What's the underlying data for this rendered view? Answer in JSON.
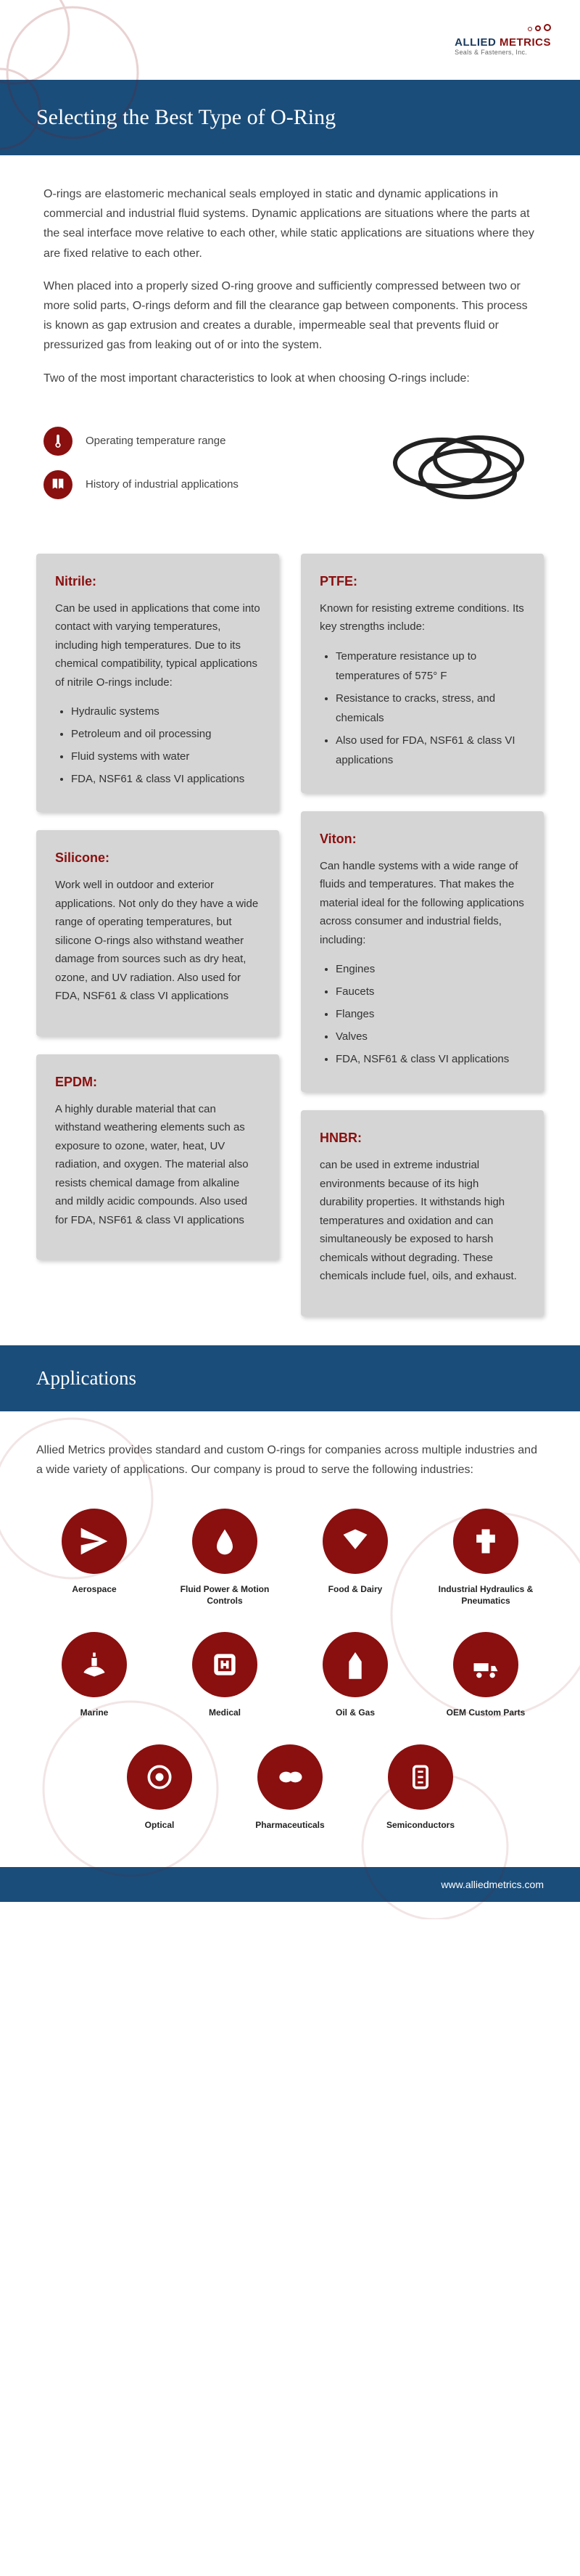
{
  "brand": {
    "name": "ALLIED",
    "accent": "METRICS",
    "sub": "Seals & Fasteners, Inc."
  },
  "title": "Selecting the Best Type of O-Ring",
  "intro": [
    "O-rings are elastomeric mechanical seals employed in static and dynamic applications in commercial and industrial fluid systems. Dynamic applications are situations where the parts at the seal interface move relative to each other, while static applications are situations where they are fixed relative to each other.",
    "When placed into a properly sized O-ring groove and sufficiently compressed between two or more solid parts, O-rings deform and fill the clearance gap between components. This process is known as gap extrusion and creates a durable, impermeable seal that prevents fluid or pressurized gas from leaking out of or into the system.",
    "Two of the most important characteristics to look at when choosing O-rings include:"
  ],
  "characteristics": [
    {
      "label": "Operating temperature range"
    },
    {
      "label": "History of industrial applications"
    }
  ],
  "materials": {
    "nitrile": {
      "title": "Nitrile:",
      "text": "Can be used in applications that come into contact with varying temperatures, including high temperatures. Due to its chemical compatibility, typical applications of nitrile O-rings include:",
      "items": [
        "Hydraulic systems",
        "Petroleum and oil processing",
        "Fluid systems with water",
        "FDA, NSF61 & class VI applications"
      ]
    },
    "ptfe": {
      "title": "PTFE:",
      "text": "Known for resisting extreme conditions. Its key strengths include:",
      "items": [
        "Temperature resistance up to temperatures of 575° F",
        "Resistance to cracks, stress, and chemicals",
        "Also used for FDA, NSF61 & class VI applications"
      ]
    },
    "viton": {
      "title": "Viton:",
      "text": "Can handle systems with a wide range of fluids and temperatures. That makes the material ideal for the following applications across consumer and industrial fields, including:",
      "items": [
        "Engines",
        "Faucets",
        "Flanges",
        "Valves",
        "FDA, NSF61 & class VI applications"
      ]
    },
    "silicone": {
      "title": "Silicone:",
      "text": "Work well in outdoor and exterior applications. Not only do they have a wide range of operating temperatures, but silicone O-rings also withstand weather damage from sources such as dry heat, ozone, and UV radiation. Also used for FDA, NSF61 & class VI applications"
    },
    "epdm": {
      "title": "EPDM:",
      "text": "A highly durable material that can withstand weathering elements such as exposure to ozone, water, heat, UV radiation, and oxygen. The material also resists chemical damage from alkaline and mildly acidic compounds. Also used for FDA, NSF61 & class VI applications"
    },
    "hnbr": {
      "title": "HNBR:",
      "text": "can be used in extreme industrial environments because of its high durability properties. It withstands high temperatures and oxidation and can simultaneously be exposed to harsh chemicals without degrading. These chemicals include fuel, oils, and exhaust."
    }
  },
  "apps_title": "Applications",
  "apps_intro": "Allied Metrics provides standard and custom O-rings for companies across multiple industries and a wide variety of applications. Our company is proud to serve the following industries:",
  "apps": [
    {
      "label": "Aerospace"
    },
    {
      "label": "Fluid Power & Motion Controls"
    },
    {
      "label": "Food & Dairy"
    },
    {
      "label": "Industrial Hydraulics & Pneumatics"
    },
    {
      "label": "Marine"
    },
    {
      "label": "Medical"
    },
    {
      "label": "Oil & Gas"
    },
    {
      "label": "OEM Custom Parts"
    },
    {
      "label": "Optical"
    },
    {
      "label": "Pharmaceuticals"
    },
    {
      "label": "Semiconductors"
    }
  ],
  "footer_url": "www.alliedmetrics.com",
  "colors": {
    "primary": "#1a4d7a",
    "accent": "#8a0f0f",
    "card": "#d5d5d5"
  }
}
